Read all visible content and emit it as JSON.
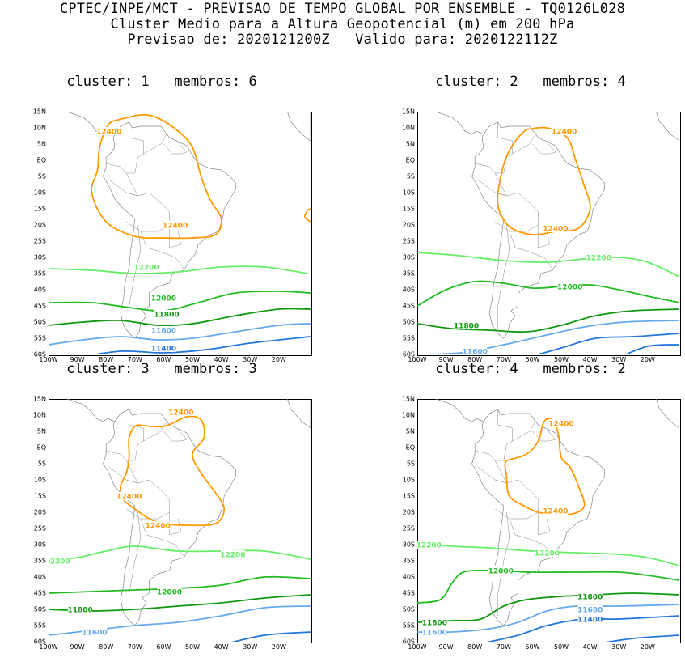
{
  "header": {
    "line1": "CPTEC/INPE/MCT - PREVISAO DE TEMPO GLOBAL POR ENSEMBLE - TQ0126L028",
    "line2": "Cluster Medio para a Altura Geopotencial (m) em 200 hPa",
    "line3": "Previsao de: 2020121200Z   Valido para: 2020122112Z"
  },
  "axes": {
    "lat_labels": [
      "15N",
      "10N",
      "5N",
      "EQ",
      "5S",
      "10S",
      "15S",
      "20S",
      "25S",
      "30S",
      "35S",
      "40S",
      "45S",
      "50S",
      "55S",
      "60S"
    ],
    "lon_labels": [
      "100W",
      "90W",
      "80W",
      "70W",
      "60W",
      "50W",
      "40W",
      "30W",
      "20W"
    ]
  },
  "colors": {
    "c12400": "#ff9900",
    "c12200": "#66ee66",
    "c12000": "#22bb22",
    "c11800": "#119911",
    "c11600": "#66aaee",
    "c11400": "#2277dd",
    "coast": "#888888"
  },
  "panels": [
    {
      "title": "cluster: 1   membros: 6",
      "labels": [
        "12400",
        "12400",
        "12200",
        "12000",
        "11800",
        "11600",
        "11400"
      ]
    },
    {
      "title": "cluster: 2   membros: 4",
      "labels": [
        "12400",
        "12400",
        "12200",
        "12000",
        "11800",
        "11600"
      ]
    },
    {
      "title": "cluster: 3   membros: 3",
      "labels": [
        "12400",
        "12400",
        "12400",
        "12200",
        "2200",
        "12000",
        "11800",
        "11600"
      ]
    },
    {
      "title": "cluster: 4   membros: 2",
      "labels": [
        "12400",
        "12400",
        "12200",
        "12200",
        "12000",
        "11800",
        "11800",
        "11600",
        "11400",
        "11600"
      ]
    }
  ]
}
